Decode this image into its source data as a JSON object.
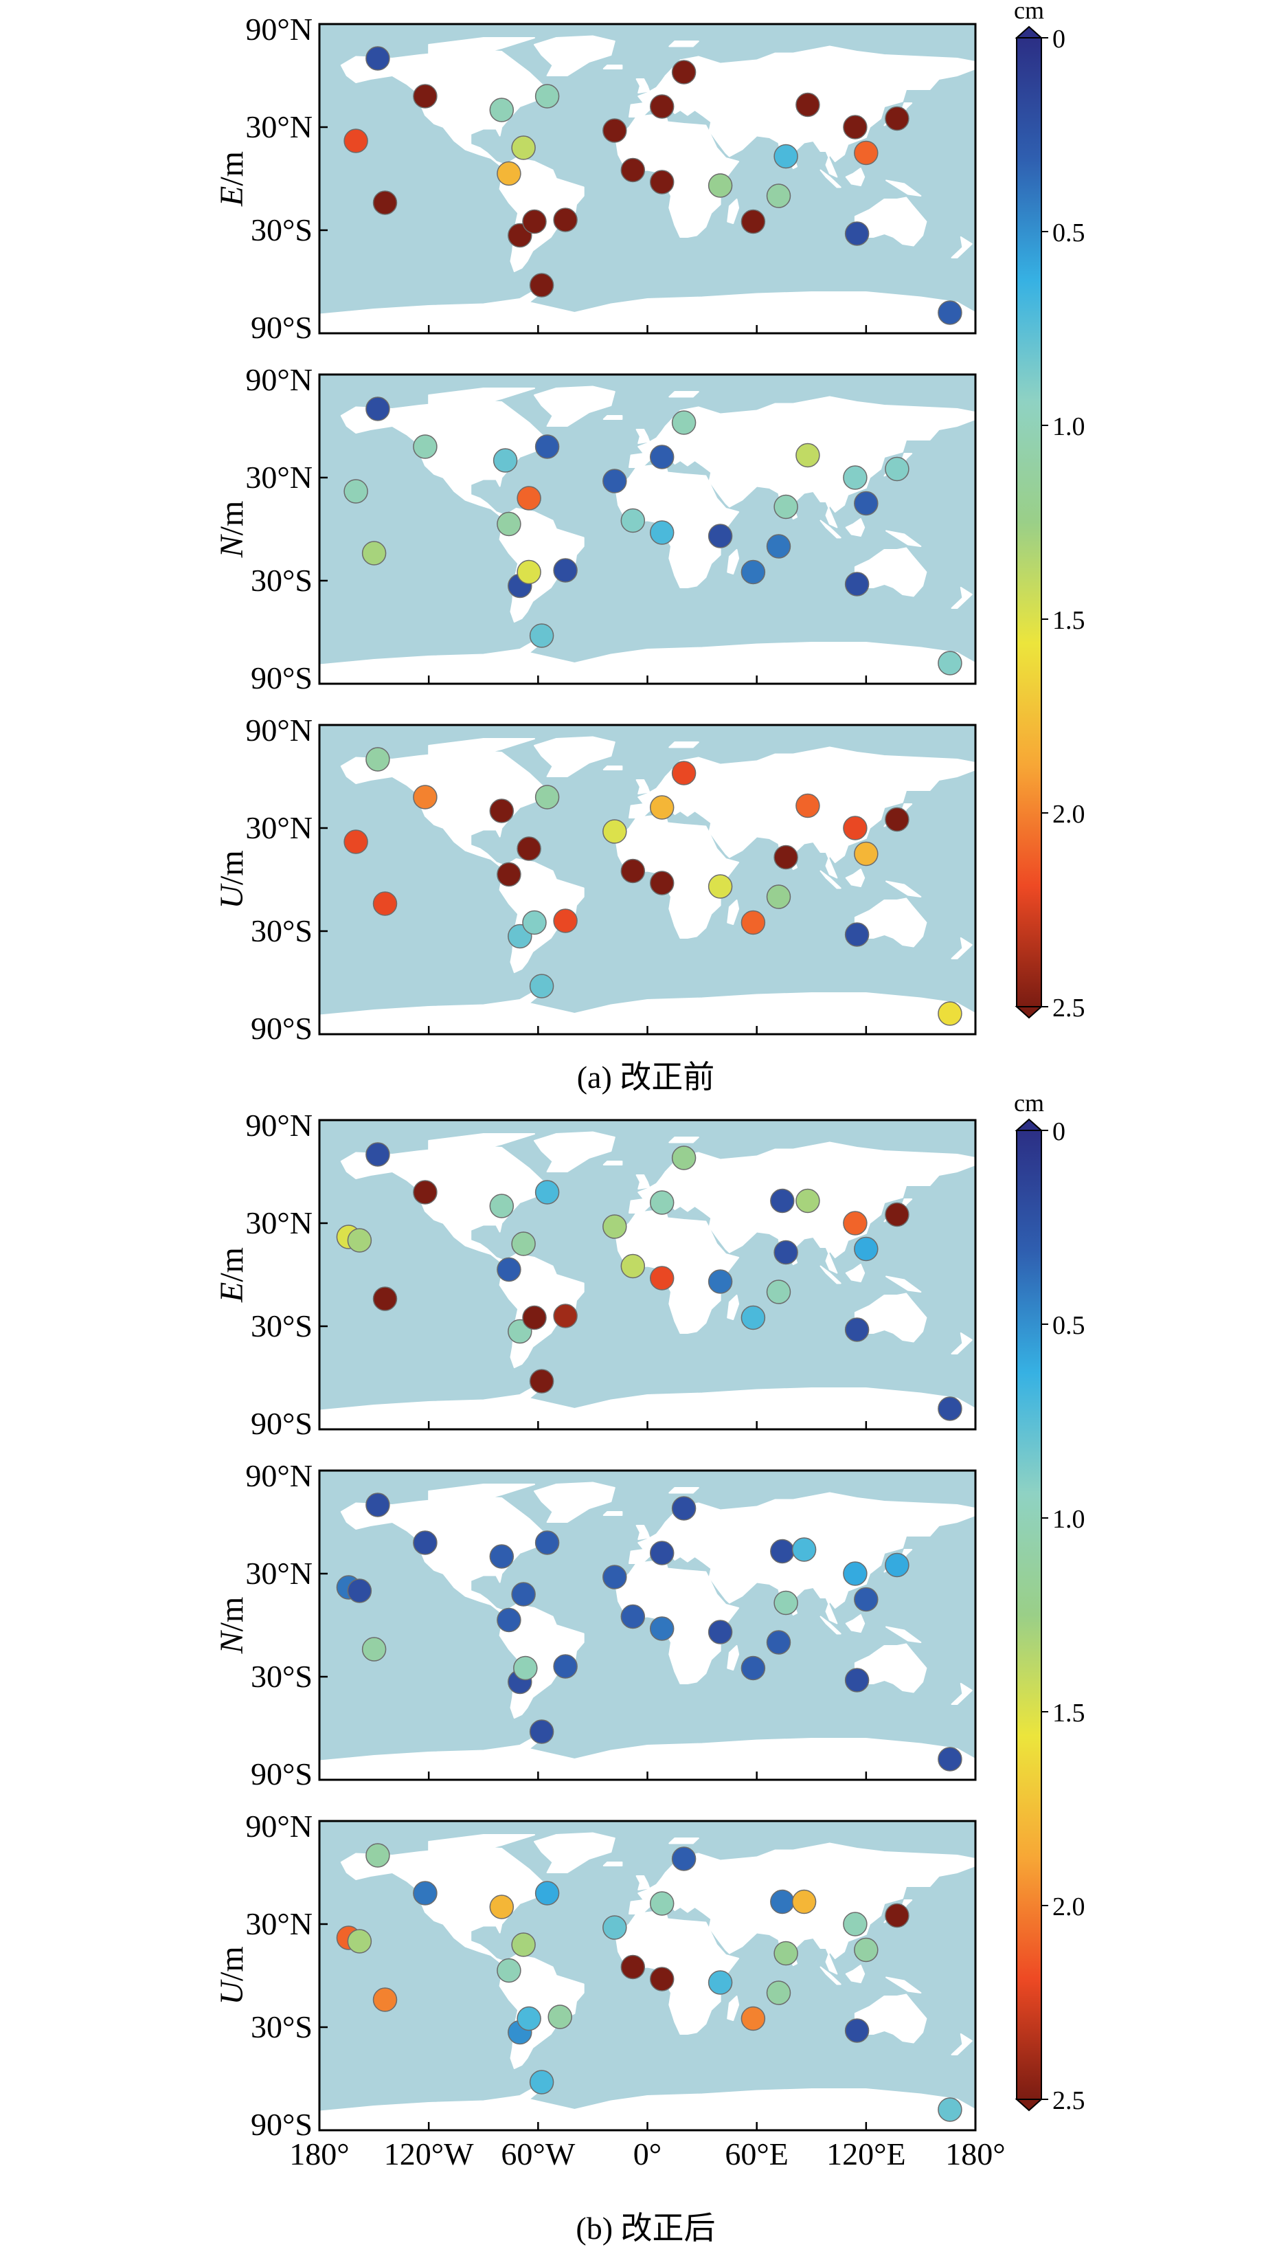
{
  "figure": {
    "colorbar": {
      "unit": "cm",
      "ticks": [
        0,
        0.5,
        1.0,
        1.5,
        2.0,
        2.5
      ],
      "tick_labels": [
        "0",
        "0.5",
        "1.0",
        "1.5",
        "2.0",
        "2.5"
      ],
      "colormap": "jet-reversed",
      "stops": [
        "#2c2f85",
        "#2f5fb0",
        "#36b1e3",
        "#8fd2c3",
        "#9acf88",
        "#ece53c",
        "#f7a736",
        "#ee4a24",
        "#7a1c12"
      ]
    },
    "y_tick_labels": [
      "90°N",
      "30°N",
      "30°S",
      "90°S"
    ],
    "x_tick_labels": [
      "180°",
      "120°W",
      "60°W",
      "0°",
      "60°E",
      "120°E",
      "180°"
    ],
    "groups": [
      {
        "caption": "(a) 改正前"
      },
      {
        "caption": "(b) 改正后"
      }
    ]
  },
  "chart_data": [
    {
      "type": "scatter",
      "group": "a",
      "component": "E",
      "ylabel": "E/m",
      "xlim": [
        -180,
        180
      ],
      "ylim": [
        -90,
        90
      ],
      "points": [
        {
          "lon": -148,
          "lat": 70,
          "v": 0.2
        },
        {
          "lon": -122,
          "lat": 48,
          "v": 2.5
        },
        {
          "lon": -80,
          "lat": 40,
          "v": 1.0
        },
        {
          "lon": -55,
          "lat": 48,
          "v": 1.0
        },
        {
          "lon": -160,
          "lat": 22,
          "v": 2.2
        },
        {
          "lon": -68,
          "lat": 18,
          "v": 1.4
        },
        {
          "lon": -76,
          "lat": 3,
          "v": 1.8
        },
        {
          "lon": -144,
          "lat": -14,
          "v": 2.5
        },
        {
          "lon": -70,
          "lat": -33,
          "v": 2.5
        },
        {
          "lon": -62,
          "lat": -25,
          "v": 2.5
        },
        {
          "lon": -45,
          "lat": -24,
          "v": 2.5
        },
        {
          "lon": -58,
          "lat": -62,
          "v": 2.5
        },
        {
          "lon": -18,
          "lat": 28,
          "v": 2.5
        },
        {
          "lon": -8,
          "lat": 5,
          "v": 2.5
        },
        {
          "lon": 8,
          "lat": 42,
          "v": 2.5
        },
        {
          "lon": 20,
          "lat": 62,
          "v": 2.5
        },
        {
          "lon": 8,
          "lat": -2,
          "v": 2.5
        },
        {
          "lon": 40,
          "lat": -4,
          "v": 1.2
        },
        {
          "lon": 58,
          "lat": -25,
          "v": 2.5
        },
        {
          "lon": 72,
          "lat": -10,
          "v": 1.1
        },
        {
          "lon": 88,
          "lat": 43,
          "v": 2.5
        },
        {
          "lon": 76,
          "lat": 13,
          "v": 0.7
        },
        {
          "lon": 114,
          "lat": 30,
          "v": 2.5
        },
        {
          "lon": 120,
          "lat": 15,
          "v": 2.1
        },
        {
          "lon": 137,
          "lat": 35,
          "v": 2.5
        },
        {
          "lon": 115,
          "lat": -32,
          "v": 0.2
        },
        {
          "lon": 166,
          "lat": -78,
          "v": 0.3
        }
      ]
    },
    {
      "type": "scatter",
      "group": "a",
      "component": "N",
      "ylabel": "N/m",
      "xlim": [
        -180,
        180
      ],
      "ylim": [
        -90,
        90
      ],
      "points": [
        {
          "lon": -148,
          "lat": 70,
          "v": 0.2
        },
        {
          "lon": -122,
          "lat": 48,
          "v": 1.0
        },
        {
          "lon": -78,
          "lat": 40,
          "v": 0.8
        },
        {
          "lon": -55,
          "lat": 48,
          "v": 0.3
        },
        {
          "lon": -160,
          "lat": 22,
          "v": 1.0
        },
        {
          "lon": -65,
          "lat": 18,
          "v": 2.1
        },
        {
          "lon": -76,
          "lat": 3,
          "v": 1.1
        },
        {
          "lon": -150,
          "lat": -14,
          "v": 1.3
        },
        {
          "lon": -70,
          "lat": -33,
          "v": 0.2
        },
        {
          "lon": -65,
          "lat": -25,
          "v": 1.5
        },
        {
          "lon": -45,
          "lat": -24,
          "v": 0.2
        },
        {
          "lon": -58,
          "lat": -62,
          "v": 0.8
        },
        {
          "lon": -18,
          "lat": 28,
          "v": 0.3
        },
        {
          "lon": -8,
          "lat": 5,
          "v": 0.9
        },
        {
          "lon": 8,
          "lat": 42,
          "v": 0.3
        },
        {
          "lon": 20,
          "lat": 62,
          "v": 1.0
        },
        {
          "lon": 8,
          "lat": -2,
          "v": 0.7
        },
        {
          "lon": 40,
          "lat": -4,
          "v": 0.2
        },
        {
          "lon": 58,
          "lat": -25,
          "v": 0.4
        },
        {
          "lon": 72,
          "lat": -10,
          "v": 0.4
        },
        {
          "lon": 88,
          "lat": 43,
          "v": 1.4
        },
        {
          "lon": 76,
          "lat": 13,
          "v": 1.0
        },
        {
          "lon": 114,
          "lat": 30,
          "v": 0.9
        },
        {
          "lon": 120,
          "lat": 15,
          "v": 0.3
        },
        {
          "lon": 137,
          "lat": 35,
          "v": 0.9
        },
        {
          "lon": 115,
          "lat": -32,
          "v": 0.2
        },
        {
          "lon": 166,
          "lat": -78,
          "v": 0.9
        }
      ]
    },
    {
      "type": "scatter",
      "group": "a",
      "component": "U",
      "ylabel": "U/m",
      "xlim": [
        -180,
        180
      ],
      "ylim": [
        -90,
        90
      ],
      "points": [
        {
          "lon": -148,
          "lat": 70,
          "v": 1.1
        },
        {
          "lon": -122,
          "lat": 48,
          "v": 2.0
        },
        {
          "lon": -80,
          "lat": 40,
          "v": 2.5
        },
        {
          "lon": -55,
          "lat": 48,
          "v": 1.1
        },
        {
          "lon": -160,
          "lat": 22,
          "v": 2.2
        },
        {
          "lon": -65,
          "lat": 18,
          "v": 2.5
        },
        {
          "lon": -76,
          "lat": 3,
          "v": 2.5
        },
        {
          "lon": -144,
          "lat": -14,
          "v": 2.2
        },
        {
          "lon": -70,
          "lat": -33,
          "v": 0.8
        },
        {
          "lon": -62,
          "lat": -25,
          "v": 0.9
        },
        {
          "lon": -45,
          "lat": -24,
          "v": 2.2
        },
        {
          "lon": -58,
          "lat": -62,
          "v": 0.8
        },
        {
          "lon": -18,
          "lat": 28,
          "v": 1.5
        },
        {
          "lon": -8,
          "lat": 5,
          "v": 2.5
        },
        {
          "lon": 8,
          "lat": 42,
          "v": 1.8
        },
        {
          "lon": 20,
          "lat": 62,
          "v": 2.2
        },
        {
          "lon": 8,
          "lat": -2,
          "v": 2.5
        },
        {
          "lon": 40,
          "lat": -4,
          "v": 1.5
        },
        {
          "lon": 58,
          "lat": -25,
          "v": 2.1
        },
        {
          "lon": 72,
          "lat": -10,
          "v": 1.2
        },
        {
          "lon": 88,
          "lat": 43,
          "v": 2.1
        },
        {
          "lon": 76,
          "lat": 13,
          "v": 2.5
        },
        {
          "lon": 114,
          "lat": 30,
          "v": 2.2
        },
        {
          "lon": 120,
          "lat": 15,
          "v": 1.8
        },
        {
          "lon": 137,
          "lat": 35,
          "v": 2.5
        },
        {
          "lon": 115,
          "lat": -32,
          "v": 0.2
        },
        {
          "lon": 166,
          "lat": -78,
          "v": 1.6
        }
      ]
    },
    {
      "type": "scatter",
      "group": "b",
      "component": "E",
      "ylabel": "E/m",
      "xlim": [
        -180,
        180
      ],
      "ylim": [
        -90,
        90
      ],
      "points": [
        {
          "lon": -148,
          "lat": 70,
          "v": 0.2
        },
        {
          "lon": -122,
          "lat": 48,
          "v": 2.5
        },
        {
          "lon": -80,
          "lat": 40,
          "v": 1.0
        },
        {
          "lon": -55,
          "lat": 48,
          "v": 0.7
        },
        {
          "lon": -164,
          "lat": 22,
          "v": 1.5
        },
        {
          "lon": -158,
          "lat": 20,
          "v": 1.3
        },
        {
          "lon": -68,
          "lat": 18,
          "v": 1.1
        },
        {
          "lon": -76,
          "lat": 3,
          "v": 0.3
        },
        {
          "lon": -144,
          "lat": -14,
          "v": 2.5
        },
        {
          "lon": -70,
          "lat": -33,
          "v": 1.0
        },
        {
          "lon": -62,
          "lat": -25,
          "v": 2.5
        },
        {
          "lon": -45,
          "lat": -24,
          "v": 2.4
        },
        {
          "lon": -58,
          "lat": -62,
          "v": 2.5
        },
        {
          "lon": -18,
          "lat": 28,
          "v": 1.3
        },
        {
          "lon": -8,
          "lat": 5,
          "v": 1.4
        },
        {
          "lon": 8,
          "lat": 42,
          "v": 1.0
        },
        {
          "lon": 20,
          "lat": 68,
          "v": 1.2
        },
        {
          "lon": 8,
          "lat": -2,
          "v": 2.2
        },
        {
          "lon": 40,
          "lat": -4,
          "v": 0.4
        },
        {
          "lon": 58,
          "lat": -25,
          "v": 0.7
        },
        {
          "lon": 72,
          "lat": -10,
          "v": 1.0
        },
        {
          "lon": 74,
          "lat": 43,
          "v": 0.2
        },
        {
          "lon": 88,
          "lat": 43,
          "v": 1.3
        },
        {
          "lon": 76,
          "lat": 13,
          "v": 0.2
        },
        {
          "lon": 114,
          "lat": 30,
          "v": 2.1
        },
        {
          "lon": 120,
          "lat": 15,
          "v": 0.6
        },
        {
          "lon": 137,
          "lat": 35,
          "v": 2.5
        },
        {
          "lon": 115,
          "lat": -32,
          "v": 0.2
        },
        {
          "lon": 166,
          "lat": -78,
          "v": 0.2
        }
      ]
    },
    {
      "type": "scatter",
      "group": "b",
      "component": "N",
      "ylabel": "N/m",
      "xlim": [
        -180,
        180
      ],
      "ylim": [
        -90,
        90
      ],
      "points": [
        {
          "lon": -148,
          "lat": 70,
          "v": 0.2
        },
        {
          "lon": -122,
          "lat": 48,
          "v": 0.2
        },
        {
          "lon": -80,
          "lat": 40,
          "v": 0.3
        },
        {
          "lon": -55,
          "lat": 48,
          "v": 0.3
        },
        {
          "lon": -164,
          "lat": 22,
          "v": 0.4
        },
        {
          "lon": -158,
          "lat": 20,
          "v": 0.2
        },
        {
          "lon": -68,
          "lat": 18,
          "v": 0.3
        },
        {
          "lon": -76,
          "lat": 3,
          "v": 0.3
        },
        {
          "lon": -150,
          "lat": -14,
          "v": 1.1
        },
        {
          "lon": -70,
          "lat": -33,
          "v": 0.2
        },
        {
          "lon": -67,
          "lat": -25,
          "v": 1.0
        },
        {
          "lon": -45,
          "lat": -24,
          "v": 0.3
        },
        {
          "lon": -58,
          "lat": -62,
          "v": 0.2
        },
        {
          "lon": -18,
          "lat": 28,
          "v": 0.3
        },
        {
          "lon": -8,
          "lat": 5,
          "v": 0.3
        },
        {
          "lon": 8,
          "lat": 42,
          "v": 0.2
        },
        {
          "lon": 20,
          "lat": 68,
          "v": 0.2
        },
        {
          "lon": 8,
          "lat": -2,
          "v": 0.4
        },
        {
          "lon": 40,
          "lat": -4,
          "v": 0.2
        },
        {
          "lon": 58,
          "lat": -25,
          "v": 0.3
        },
        {
          "lon": 72,
          "lat": -10,
          "v": 0.3
        },
        {
          "lon": 74,
          "lat": 43,
          "v": 0.2
        },
        {
          "lon": 86,
          "lat": 44,
          "v": 0.7
        },
        {
          "lon": 76,
          "lat": 13,
          "v": 1.0
        },
        {
          "lon": 114,
          "lat": 30,
          "v": 0.6
        },
        {
          "lon": 120,
          "lat": 15,
          "v": 0.3
        },
        {
          "lon": 137,
          "lat": 35,
          "v": 0.6
        },
        {
          "lon": 115,
          "lat": -32,
          "v": 0.2
        },
        {
          "lon": 166,
          "lat": -78,
          "v": 0.2
        }
      ]
    },
    {
      "type": "scatter",
      "group": "b",
      "component": "U",
      "ylabel": "U/m",
      "xlim": [
        -180,
        180
      ],
      "ylim": [
        -90,
        90
      ],
      "points": [
        {
          "lon": -148,
          "lat": 70,
          "v": 1.1
        },
        {
          "lon": -122,
          "lat": 48,
          "v": 0.4
        },
        {
          "lon": -80,
          "lat": 40,
          "v": 1.8
        },
        {
          "lon": -55,
          "lat": 48,
          "v": 0.6
        },
        {
          "lon": -164,
          "lat": 22,
          "v": 2.1
        },
        {
          "lon": -158,
          "lat": 20,
          "v": 1.3
        },
        {
          "lon": -68,
          "lat": 18,
          "v": 1.3
        },
        {
          "lon": -76,
          "lat": 3,
          "v": 1.0
        },
        {
          "lon": -144,
          "lat": -14,
          "v": 2.0
        },
        {
          "lon": -70,
          "lat": -33,
          "v": 0.5
        },
        {
          "lon": -65,
          "lat": -25,
          "v": 0.7
        },
        {
          "lon": -48,
          "lat": -24,
          "v": 1.1
        },
        {
          "lon": -58,
          "lat": -62,
          "v": 0.7
        },
        {
          "lon": -18,
          "lat": 28,
          "v": 0.8
        },
        {
          "lon": -8,
          "lat": 5,
          "v": 2.5
        },
        {
          "lon": 8,
          "lat": 42,
          "v": 1.0
        },
        {
          "lon": 20,
          "lat": 68,
          "v": 0.3
        },
        {
          "lon": 8,
          "lat": -2,
          "v": 2.5
        },
        {
          "lon": 40,
          "lat": -4,
          "v": 0.7
        },
        {
          "lon": 58,
          "lat": -25,
          "v": 2.0
        },
        {
          "lon": 72,
          "lat": -10,
          "v": 1.1
        },
        {
          "lon": 74,
          "lat": 43,
          "v": 0.4
        },
        {
          "lon": 86,
          "lat": 43,
          "v": 1.8
        },
        {
          "lon": 76,
          "lat": 13,
          "v": 1.2
        },
        {
          "lon": 114,
          "lat": 30,
          "v": 1.0
        },
        {
          "lon": 120,
          "lat": 15,
          "v": 1.1
        },
        {
          "lon": 137,
          "lat": 35,
          "v": 2.5
        },
        {
          "lon": 115,
          "lat": -32,
          "v": 0.2
        },
        {
          "lon": 166,
          "lat": -78,
          "v": 0.8
        }
      ]
    }
  ]
}
